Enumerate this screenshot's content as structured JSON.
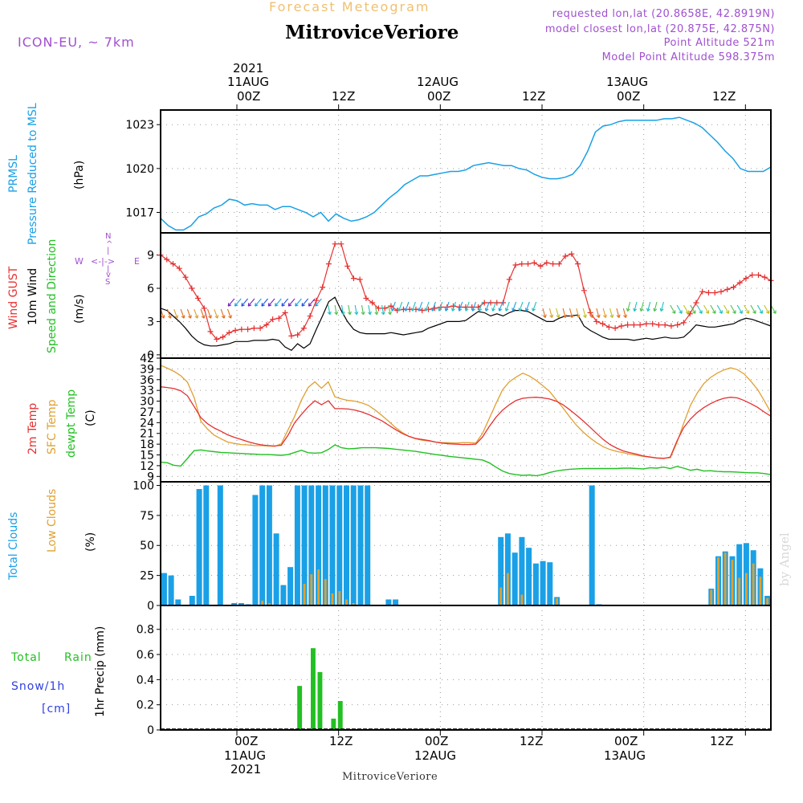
{
  "header": {
    "title": "Forecast Meteogram",
    "location": "MitroviceVeriore",
    "model": "ICON-EU, ~ 7km",
    "requested": "requested lon,lat (20.8658E, 42.8919N)",
    "closest": "model closest lon,lat (20.875E, 42.875N)",
    "point_altitude": "Point Altitude 521m",
    "model_altitude": "Model Point Altitude 598.375m",
    "credit": "by Angel",
    "colors": {
      "title": "#f0c070",
      "info": "#a050d0",
      "location": "#000000"
    }
  },
  "time_axis": {
    "top": [
      {
        "label": "00Z",
        "date": "11AUG",
        "year": "2021"
      },
      {
        "label": "12Z"
      },
      {
        "label": "00Z",
        "date": "12AUG"
      },
      {
        "label": "12Z"
      },
      {
        "label": "00Z",
        "date": "13AUG"
      },
      {
        "label": "12Z"
      }
    ],
    "bottom": [
      {
        "label": "00Z",
        "date": "11AUG",
        "year": "2021"
      },
      {
        "label": "12Z"
      },
      {
        "label": "00Z",
        "date": "12AUG"
      },
      {
        "label": "12Z"
      },
      {
        "label": "00Z",
        "date": "13AUG"
      },
      {
        "label": "12Z"
      }
    ],
    "start": "2021-08-10T15Z",
    "end": "2021-08-13T15Z",
    "step_hours": 1
  },
  "panels": {
    "pressure": {
      "labels": [
        "PRMSL",
        "Pressure Reduced to MSL",
        "(hPa)"
      ],
      "colors": [
        "#1aa0e6",
        "#1aa0e6",
        "#000000"
      ]
    },
    "wind": {
      "labels": [
        "Wind GUST",
        "10m Wind",
        "Speed and Direction",
        "(m/s)"
      ],
      "colors": [
        "#e63030",
        "#000000",
        "#22c022",
        "#000000"
      ],
      "compass": {
        "n": "N",
        "s": "S",
        "w": "W",
        "e": "E",
        "arrow_lr": "<-|->",
        "arrow_up": "^",
        "bar": "|",
        "arrow_down": "v"
      }
    },
    "temp": {
      "labels": [
        "2m Temp",
        "SFC Temp",
        "dewpt Temp",
        "(C)"
      ],
      "colors": [
        "#e63030",
        "#e0a030",
        "#22c022",
        "#000000"
      ]
    },
    "clouds": {
      "labels": [
        "Total Clouds",
        "Low Clouds",
        "(%)"
      ],
      "colors": [
        "#1aa0e6",
        "#e0a030",
        "#000000"
      ]
    },
    "precip": {
      "labels": [
        "Total",
        "Rain",
        "Snow/1h",
        "[cm]",
        "1hr Precip (mm)"
      ],
      "colors": [
        "#22c022",
        "#22c022",
        "#3040e0",
        "#3040e0",
        "#000000"
      ]
    }
  },
  "chart_data": [
    {
      "type": "line",
      "title": "PRMSL Pressure Reduced to MSL",
      "ylabel": "(hPa)",
      "yticks": [
        "1017",
        "1020",
        "1023"
      ],
      "ylim": [
        1015.6,
        1024.0
      ],
      "x_start_hour": 0,
      "series": [
        {
          "values": [
            1016.6,
            1016.1,
            1015.8,
            1015.8,
            1016.1,
            1016.7,
            1016.9,
            1017.3,
            1017.5,
            1017.9,
            1017.8,
            1017.5,
            1017.6,
            1017.5,
            1017.5,
            1017.2,
            1017.4,
            1017.4,
            1017.2,
            1017.0,
            1016.7,
            1017.0,
            1016.4,
            1016.9,
            1016.6,
            1016.4,
            1016.5,
            1016.7,
            1017.0,
            1017.5,
            1018.0,
            1018.4,
            1018.9,
            1019.2,
            1019.5,
            1019.5,
            1019.6,
            1019.7,
            1019.8,
            1019.8,
            1019.9,
            1020.2,
            1020.3,
            1020.4,
            1020.3,
            1020.2,
            1020.2,
            1020.0,
            1019.9,
            1019.6,
            1019.4,
            1019.3,
            1019.3,
            1019.4,
            1019.6,
            1020.2,
            1021.2,
            1022.5,
            1022.9,
            1023.0,
            1023.2,
            1023.3,
            1023.3,
            1023.3,
            1023.3,
            1023.3,
            1023.4,
            1023.4,
            1023.5,
            1023.3,
            1023.1,
            1022.8,
            1022.3,
            1021.8,
            1021.2,
            1020.7,
            1020.0,
            1019.8,
            1019.8,
            1019.8,
            1020.1
          ]
        }
      ],
      "colors": [
        "#1aa0e6"
      ]
    },
    {
      "type": "line",
      "title": "Wind GUST / 10m Wind Speed and Direction",
      "ylabel": "(m/s)",
      "yticks": [
        "0",
        "3",
        "6",
        "9"
      ],
      "ylim": [
        -0.3,
        11.0
      ],
      "x_start_hour": 0,
      "series": [
        {
          "values": [
            9.0,
            8.6,
            8.2,
            7.8,
            7.0,
            6.0,
            5.1,
            4.2,
            2.1,
            1.4,
            1.6,
            2.0,
            2.2,
            2.3,
            2.3,
            2.4,
            2.4,
            2.7,
            3.2,
            3.3,
            3.8,
            1.7,
            1.8,
            2.4,
            3.5,
            4.9,
            6.1,
            8.2,
            10.0,
            10.0,
            8.0,
            6.9,
            6.8,
            5.1,
            4.7,
            4.2,
            4.2,
            4.4,
            4.0,
            4.1,
            4.1,
            4.1,
            4.0,
            4.1,
            4.2,
            4.3,
            4.3,
            4.4,
            4.3,
            4.3,
            4.3,
            4.3,
            4.7,
            4.7,
            4.7,
            4.7,
            6.8,
            8.1,
            8.2,
            8.2,
            8.3,
            8.0,
            8.3,
            8.2,
            8.2,
            8.9,
            9.1,
            8.2,
            5.8,
            3.8,
            3.0,
            2.8,
            2.5,
            2.4,
            2.6,
            2.7,
            2.7,
            2.7,
            2.8,
            2.8,
            2.7,
            2.7,
            2.6,
            2.7,
            2.9,
            3.7,
            4.7,
            5.7,
            5.6,
            5.6,
            5.7,
            5.9,
            6.1,
            6.5,
            6.9,
            7.2,
            7.2,
            7.0,
            6.7
          ]
        },
        {
          "values": [
            4.2,
            4.0,
            3.5,
            3.0,
            2.4,
            1.7,
            1.2,
            0.9,
            0.8,
            0.8,
            0.9,
            1.0,
            1.2,
            1.2,
            1.2,
            1.3,
            1.3,
            1.3,
            1.4,
            1.3,
            0.7,
            0.4,
            1.0,
            0.6,
            1.0,
            2.3,
            3.5,
            4.8,
            5.2,
            4.0,
            3.0,
            2.3,
            2.0,
            1.9,
            1.9,
            1.9,
            1.9,
            2.0,
            1.9,
            1.8,
            1.9,
            2.0,
            2.1,
            2.4,
            2.6,
            2.8,
            3.0,
            3.0,
            3.0,
            3.1,
            3.5,
            3.9,
            3.8,
            3.5,
            3.7,
            3.5,
            3.8,
            4.0,
            4.0,
            3.9,
            3.6,
            3.3,
            3.0,
            3.0,
            3.3,
            3.5,
            3.5,
            3.6,
            2.6,
            2.2,
            1.9,
            1.6,
            1.4,
            1.4,
            1.4,
            1.4,
            1.3,
            1.4,
            1.5,
            1.4,
            1.5,
            1.6,
            1.5,
            1.5,
            1.6,
            2.1,
            2.7,
            2.6,
            2.5,
            2.5,
            2.6,
            2.7,
            2.8,
            3.1,
            3.3,
            3.2,
            3.0,
            2.8,
            2.6
          ]
        }
      ],
      "colors": [
        "#e63030",
        "#000000"
      ]
    },
    {
      "type": "line",
      "title": "2m Temp / SFC Temp / dewpt Temp",
      "ylabel": "(C)",
      "yticks": [
        "9",
        "12",
        "15",
        "18",
        "21",
        "24",
        "27",
        "30",
        "33",
        "36",
        "39",
        "42"
      ],
      "ylim": [
        7.5,
        42
      ],
      "x_start_hour": 0,
      "series": [
        {
          "values": [
            34,
            33.8,
            33.5,
            32.9,
            31.5,
            28.5,
            25.4,
            23.7,
            22.5,
            21.6,
            20.6,
            19.9,
            19.3,
            18.7,
            18.2,
            17.8,
            17.6,
            17.5,
            17.7,
            20.5,
            24.0,
            26.3,
            28.4,
            30.1,
            29.0,
            30.1,
            27.9,
            27.9,
            27.8,
            27.5,
            27.0,
            26.3,
            25.4,
            24.5,
            23.3,
            22.1,
            21.0,
            20.2,
            19.6,
            19.3,
            19.0,
            18.6,
            18.3,
            18.1,
            18.0,
            17.9,
            17.9,
            18.0,
            20.0,
            22.9,
            25.5,
            27.5,
            29.0,
            30.2,
            30.8,
            31.0,
            31.1,
            30.9,
            30.6,
            30.0,
            29.0,
            27.6,
            26.1,
            24.5,
            22.8,
            21.0,
            19.3,
            17.9,
            16.9,
            16.1,
            15.6,
            15.2,
            14.7,
            14.4,
            14.1,
            14.0,
            14.4,
            18.9,
            22.6,
            25.0,
            26.8,
            28.2,
            29.3,
            30.2,
            30.8,
            31.1,
            30.9,
            30.2,
            29.3,
            28.3,
            27.0,
            25.8
          ]
        },
        {
          "values": [
            40.0,
            39.2,
            38.3,
            37.1,
            35.3,
            31.0,
            24.4,
            22.2,
            20.5,
            19.5,
            18.6,
            18.2,
            17.9,
            17.8,
            17.6,
            17.6,
            17.5,
            17.4,
            18.1,
            22.0,
            25.8,
            30.3,
            33.8,
            35.4,
            33.6,
            35.4,
            31.2,
            30.6,
            30.2,
            30.0,
            29.5,
            28.8,
            27.5,
            26.0,
            24.4,
            22.7,
            21.3,
            20.2,
            19.5,
            19.1,
            18.9,
            18.6,
            18.4,
            18.4,
            18.3,
            18.4,
            18.4,
            18.3,
            21.0,
            25.1,
            29.3,
            33.2,
            35.4,
            36.7,
            37.8,
            37.0,
            35.8,
            34.3,
            32.7,
            30.4,
            28.1,
            25.6,
            23.3,
            21.4,
            19.8,
            18.4,
            17.3,
            16.5,
            16.0,
            15.6,
            15.2,
            14.9,
            14.6,
            14.4,
            14.2,
            14.1,
            14.2,
            18.5,
            23.8,
            28.8,
            32.2,
            34.9,
            36.6,
            37.8,
            38.7,
            39.3,
            38.8,
            37.6,
            35.6,
            33.3,
            30.2,
            26.8
          ]
        },
        {
          "values": [
            13.0,
            12.8,
            12.1,
            11.9,
            14.0,
            16.2,
            16.4,
            16.1,
            15.9,
            15.7,
            15.6,
            15.5,
            15.4,
            15.3,
            15.2,
            15.1,
            15.1,
            15.0,
            14.9,
            15.1,
            15.7,
            16.3,
            15.6,
            15.5,
            15.6,
            16.5,
            17.8,
            17.0,
            16.7,
            16.8,
            17.0,
            17.0,
            17.0,
            16.9,
            16.8,
            16.6,
            16.4,
            16.2,
            16.0,
            15.7,
            15.4,
            15.1,
            14.9,
            14.6,
            14.4,
            14.2,
            14.0,
            13.8,
            13.6,
            12.8,
            11.6,
            10.5,
            9.8,
            9.5,
            9.3,
            9.4,
            9.2,
            9.5,
            10.1,
            10.5,
            10.8,
            11.0,
            11.1,
            11.2,
            11.2,
            11.2,
            11.2,
            11.2,
            11.2,
            11.3,
            11.3,
            11.2,
            11.1,
            11.4,
            11.3,
            11.6,
            11.2,
            11.8,
            11.3,
            10.7,
            11.0,
            10.5,
            10.6,
            10.4,
            10.3,
            10.3,
            10.2,
            10.1,
            10.0,
            10.0,
            9.8,
            9.5
          ]
        }
      ],
      "colors": [
        "#e63030",
        "#e0a030",
        "#22c022"
      ]
    },
    {
      "type": "bar",
      "title": "Total Clouds / Low Clouds",
      "ylabel": "(%)",
      "yticks": [
        "0",
        "25",
        "50",
        "75",
        "100"
      ],
      "ylim": [
        0,
        103
      ],
      "x_start_hour": 0,
      "series": [
        {
          "values": [
            27,
            25,
            5,
            0,
            8,
            97,
            100,
            0,
            100,
            0,
            2,
            2,
            1,
            92,
            100,
            100,
            60,
            17,
            32,
            100,
            100,
            100,
            100,
            100,
            100,
            100,
            100,
            100,
            100,
            100,
            0,
            0,
            5,
            5,
            0,
            0,
            0,
            0,
            0,
            0,
            0,
            0,
            0,
            0,
            0,
            0,
            0,
            0,
            57,
            60,
            44,
            57,
            48,
            35,
            37,
            36,
            7,
            0,
            0,
            0,
            0,
            100,
            1,
            0,
            0,
            0,
            0,
            0,
            0,
            0,
            0,
            0,
            0,
            0,
            0,
            0,
            0,
            0,
            14,
            41,
            45,
            41,
            51,
            52,
            46,
            31,
            8
          ]
        },
        {
          "values": [
            0,
            0,
            0,
            0,
            0,
            0,
            0,
            0,
            0,
            0,
            0,
            0,
            0,
            0,
            4,
            2,
            0,
            0,
            0,
            0,
            18,
            26,
            30,
            22,
            10,
            12,
            5,
            2,
            0,
            0,
            0,
            0,
            0,
            0,
            0,
            0,
            0,
            0,
            0,
            0,
            0,
            0,
            0,
            0,
            0,
            0,
            0,
            0,
            15,
            27,
            0,
            9,
            0,
            0,
            0,
            0,
            6,
            0,
            0,
            0,
            0,
            0,
            0,
            0,
            0,
            0,
            0,
            0,
            0,
            0,
            0,
            0,
            0,
            0,
            0,
            0,
            0,
            0,
            13,
            40,
            44,
            38,
            23,
            27,
            35,
            24,
            6
          ]
        }
      ],
      "colors": [
        "#1aa0e6",
        "#e0a030"
      ]
    },
    {
      "type": "bar",
      "title": "Total Rain / Snow",
      "ylabel": "1hr Precip (mm)",
      "yticks": [
        "0",
        "0.2",
        "0.4",
        "0.6",
        "0.8"
      ],
      "ylim": [
        0,
        0.99
      ],
      "x_start_hour": 0,
      "series": [
        {
          "values": [
            0,
            0,
            0,
            0,
            0,
            0,
            0,
            0,
            0,
            0,
            0,
            0,
            0,
            0,
            0,
            0,
            0,
            0,
            0,
            0,
            0.35,
            0,
            0.65,
            0.46,
            0,
            0.09,
            0.23,
            0,
            0,
            0,
            0,
            0,
            0,
            0,
            0,
            0,
            0,
            0,
            0,
            0,
            0,
            0,
            0,
            0,
            0,
            0,
            0,
            0,
            0,
            0,
            0,
            0,
            0,
            0,
            0,
            0,
            0,
            0,
            0,
            0,
            0,
            0,
            0,
            0,
            0,
            0,
            0,
            0,
            0,
            0,
            0,
            0,
            0,
            0,
            0,
            0,
            0,
            0,
            0,
            0,
            0,
            0,
            0,
            0,
            0,
            0,
            0,
            0,
            0,
            0
          ]
        }
      ],
      "colors": [
        "#22c022"
      ]
    }
  ]
}
